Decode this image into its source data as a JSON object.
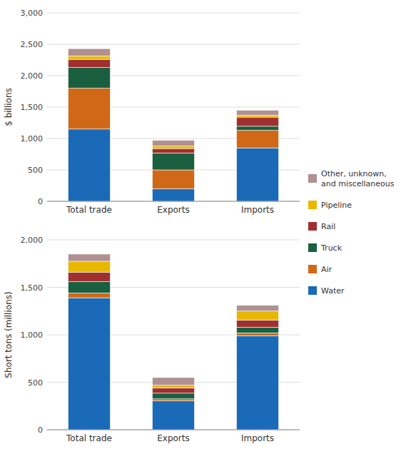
{
  "chart_data": [
    {
      "type": "bar",
      "stacked": true,
      "grid": true,
      "legend": "right",
      "ylabel": "$ billions",
      "categories": [
        "Total trade",
        "Exports",
        "Imports"
      ],
      "ylim": [
        0,
        3000
      ],
      "yticks": [
        0,
        500,
        {
          "value": 1000,
          "label": "1,000"
        },
        {
          "value": 1500,
          "label": "1,500"
        },
        {
          "value": 2000,
          "label": "2,000"
        },
        {
          "value": 2500,
          "label": "2,500"
        },
        {
          "value": 3000,
          "label": "3,000"
        }
      ],
      "series": [
        {
          "name": "Water",
          "color": "#1a6ab8",
          "values": [
            1150,
            200,
            850
          ]
        },
        {
          "name": "Air",
          "color": "#d06818",
          "values": [
            650,
            300,
            280
          ]
        },
        {
          "name": "Truck",
          "color": "#1a6040",
          "values": [
            330,
            270,
            65
          ]
        },
        {
          "name": "Rail",
          "color": "#a03030",
          "values": [
            130,
            70,
            145
          ]
        },
        {
          "name": "Pipeline",
          "color": "#e8b800",
          "values": [
            55,
            40,
            30
          ]
        },
        {
          "name": "Other, unknown,\nand miscellaneous",
          "color": "#b09090",
          "values": [
            115,
            90,
            80
          ]
        }
      ]
    },
    {
      "type": "bar",
      "stacked": true,
      "grid": true,
      "ylabel": "Short tons (millions)",
      "categories": [
        "Total trade",
        "Exports",
        "Imports"
      ],
      "ylim": [
        0,
        2000
      ],
      "yticks": [
        0,
        500,
        {
          "value": 1000,
          "label": "1,000"
        },
        {
          "value": 1500,
          "label": "1,500"
        },
        {
          "value": 2000,
          "label": "2,000"
        }
      ],
      "series": [
        {
          "color": "#1a6ab8",
          "values": [
            1390,
            305,
            990
          ]
        },
        {
          "color": "#d06818",
          "values": [
            50,
            20,
            30
          ]
        },
        {
          "color": "#1a6040",
          "values": [
            120,
            60,
            60
          ]
        },
        {
          "color": "#a03030",
          "values": [
            100,
            55,
            75
          ]
        },
        {
          "color": "#e8b800",
          "values": [
            115,
            30,
            95
          ]
        },
        {
          "color": "#b09090",
          "values": [
            75,
            80,
            60
          ]
        }
      ]
    }
  ]
}
